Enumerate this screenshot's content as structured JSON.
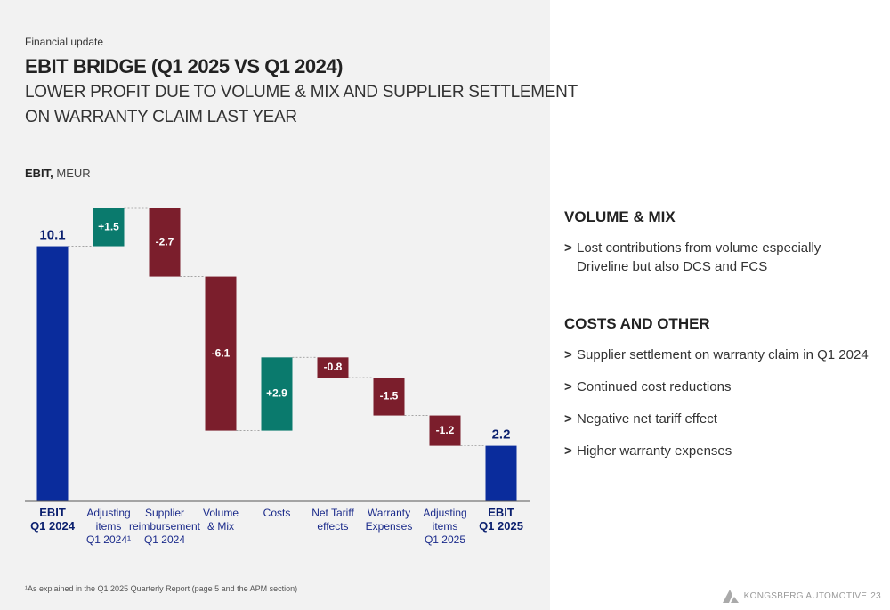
{
  "header": {
    "kicker": "Financial update",
    "title": "EBIT BRIDGE (Q1 2025 VS Q1 2024)",
    "subtitle": "LOWER PROFIT DUE TO VOLUME & MIX AND SUPPLIER SETTLEMENT\nON WARRANTY CLAIM LAST YEAR"
  },
  "chart_data": {
    "type": "waterfall",
    "axis_label_bold": "EBIT,",
    "axis_label": "MEUR",
    "categories": [
      "EBIT\nQ1 2024",
      "Adjusting\nitems\nQ1 2024¹",
      "Supplier\nreimbursement\nQ1 2024",
      "Volume\n& Mix",
      "Costs",
      "Net Tariff\neffects",
      "Warranty\nExpenses",
      "Adjusting\nitems\nQ1 2025",
      "EBIT\nQ1 2025"
    ],
    "kinds": [
      "total",
      "increase",
      "decrease",
      "decrease",
      "increase",
      "decrease",
      "decrease",
      "decrease",
      "total"
    ],
    "values": [
      10.1,
      1.5,
      -2.7,
      -6.1,
      2.9,
      -0.8,
      -1.5,
      -1.2,
      2.2
    ],
    "value_labels": [
      "10.1",
      "+1.5",
      "-2.7",
      "-6.1",
      "+2.9",
      "-0.8",
      "-1.5",
      "-1.2",
      "2.2"
    ],
    "colors": {
      "total": "#0a2c9c",
      "increase": "#0a7a6d",
      "decrease": "#7b1e2c"
    }
  },
  "panel": {
    "bullet_marker": ">",
    "sections": [
      {
        "heading": "VOLUME & MIX",
        "bullets": [
          "Lost contributions from volume especially Driveline but also DCS and FCS"
        ]
      },
      {
        "heading": "COSTS AND OTHER",
        "bullets": [
          "Supplier settlement on warranty claim in Q1 2024",
          "Continued cost reductions",
          "Negative net tariff effect",
          "Higher warranty expenses"
        ]
      }
    ]
  },
  "footer": {
    "footnote": "¹As explained in the Q1 2025 Quarterly Report (page 5 and the APM section)",
    "brand": "KONGSBERG AUTOMOTIVE",
    "page": "23"
  }
}
